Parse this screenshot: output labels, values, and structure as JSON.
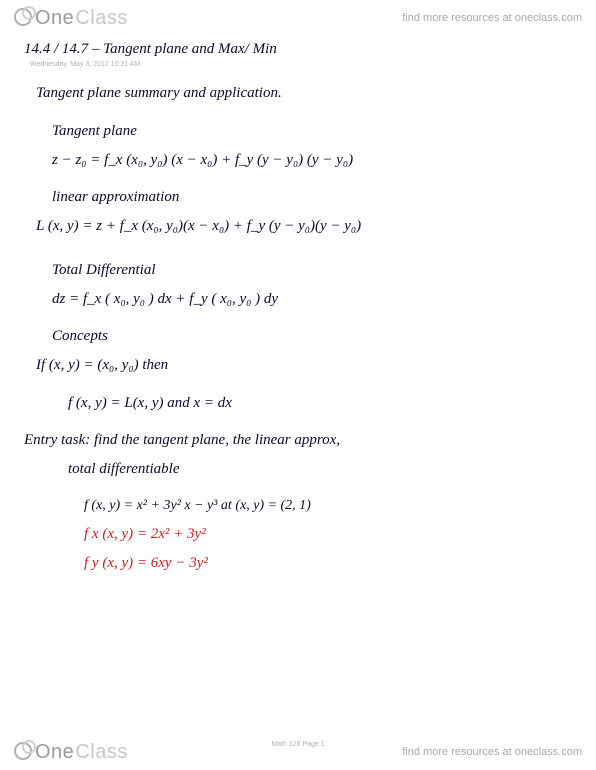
{
  "brand": {
    "one": "One",
    "class": "Class"
  },
  "resources_text": "find more resources at oneclass.com",
  "header": {
    "section": "14.4 / 14.7 – Tangent plane and Max/ Min",
    "meta": "Wednesday, May 3, 2017    10:31 AM"
  },
  "lines": {
    "summary": "Tangent plane summary and application.",
    "tp_label": "Tangent plane",
    "tp_eq": "z − z₀ = f_x (x₀, y₀) (x − x₀)  +  f_y (y − y₀) (y − y₀)",
    "la_label": "linear approximation",
    "la_eq": "L (x, y) =  z +  f_x (x₀, y₀)(x − x₀)  +  f_y (y − y₀)(y − y₀)",
    "td_label": "Total Differential",
    "td_eq": "dz =  f_x ( x₀, y₀ ) dx + f_y ( x₀, y₀ ) dy",
    "concepts": "Concepts",
    "if_eq": "If (x, y) = (x₀, y₀) then",
    "fL_eq": "f (x, y) = L(x, y)   and   x = dx",
    "task1": "Entry task: find the tangent plane, the linear approx,",
    "task2": "total differentiable",
    "func": "f (x, y) =  x² + 3y² x − y³        at (x, y) = (2, 1)",
    "fx": "f x (x, y) = 2x² +  3y²",
    "fy": "f y (x, y) =  6xy − 3y²"
  },
  "page_num": "Math 126 Page 1",
  "colors": {
    "ink": "#0a0a2a",
    "red": "#d11a1a",
    "wm_dark": "#9a9a9a",
    "wm_light": "#c8c8c8"
  }
}
